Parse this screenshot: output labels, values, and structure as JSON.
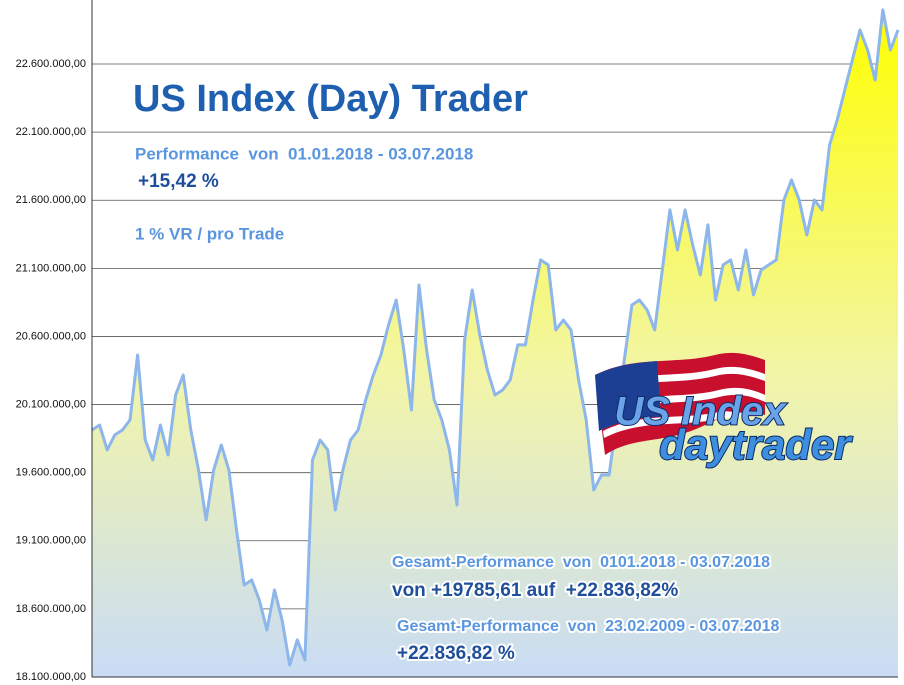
{
  "chart_data": {
    "type": "area",
    "title": "US Index (Day) Trader",
    "annotations": [
      "Performance  von  01.01.2018 - 03.07.2018",
      "+15,42 %",
      "1 % VR / pro Trade",
      "Gesamt-Performance  von  0101.2018 - 03.07.2018",
      "von +19785,61 auf  +22.836,82%",
      "Gesamt-Performance  von  23.02.2009 - 03.07.2018",
      "+22.836,82 %"
    ],
    "logo": [
      "US Index",
      "daytrader"
    ],
    "color": "#8db6ea",
    "grid": true,
    "ylim": [
      18100000,
      23070000
    ],
    "yticks": [
      {
        "value": 18100000,
        "label": "18.100.000,00"
      },
      {
        "value": 18600000,
        "label": "18.600.000,00"
      },
      {
        "value": 19100000,
        "label": "19.100.000,00"
      },
      {
        "value": 19600000,
        "label": "19.600.000,00"
      },
      {
        "value": 20100000,
        "label": "20.100.000,00"
      },
      {
        "value": 20600000,
        "label": "20.600.000,00"
      },
      {
        "value": 21100000,
        "label": "21.100.000,00"
      },
      {
        "value": 21600000,
        "label": "21.600.000,00"
      },
      {
        "value": 22100000,
        "label": "22.100.000,00"
      },
      {
        "value": 22600000,
        "label": "22.600.000,00"
      }
    ],
    "values": [
      19913000,
      19950000,
      19767000,
      19877000,
      19913000,
      19987000,
      20464000,
      19840000,
      19693000,
      19950000,
      19730000,
      20170000,
      20317000,
      19913000,
      19620000,
      19253000,
      19620000,
      19803000,
      19620000,
      19179000,
      18775000,
      18812000,
      18665000,
      18445000,
      18739000,
      18518000,
      18188000,
      18372000,
      18225000,
      19693000,
      19840000,
      19767000,
      19326000,
      19620000,
      19840000,
      19913000,
      20134000,
      20317000,
      20464000,
      20684000,
      20868000,
      20501000,
      20060000,
      20978000,
      20501000,
      20134000,
      19987000,
      19767000,
      19363000,
      20574000,
      20941000,
      20611000,
      20354000,
      20170000,
      20207000,
      20281000,
      20538000,
      20538000,
      20868000,
      21162000,
      21125000,
      20648000,
      20721000,
      20648000,
      20281000,
      19987000,
      19473000,
      19583000,
      19583000,
      19987000,
      20427000,
      20831000,
      20868000,
      20795000,
      20648000,
      21088000,
      21529000,
      21235000,
      21529000,
      21272000,
      21051000,
      21419000,
      20868000,
      21125000,
      21162000,
      20941000,
      21235000,
      20905000,
      21088000,
      21125000,
      21162000,
      21602000,
      21749000,
      21602000,
      21345000,
      21602000,
      21529000,
      22006000,
      22189000,
      22410000,
      22630000,
      22850000,
      22703000,
      22483000,
      22997000,
      22703000,
      22850000
    ]
  }
}
